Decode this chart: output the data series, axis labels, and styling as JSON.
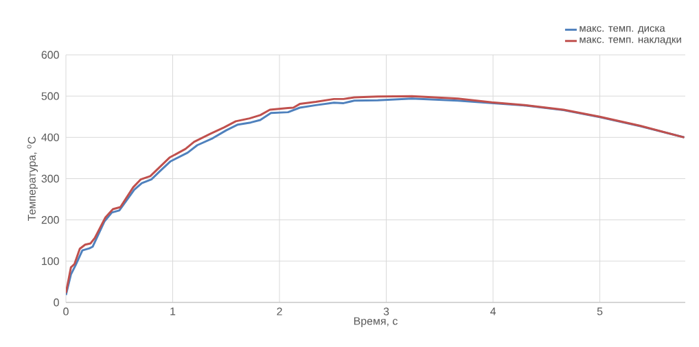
{
  "chart_data": {
    "type": "line",
    "xlabel": "Время, с",
    "ylabel": "Температура, $^{o}$C",
    "xlim": [
      0,
      5.8
    ],
    "ylim": [
      0,
      600
    ],
    "xticks": [
      0,
      1,
      2,
      3,
      4,
      5
    ],
    "yticks": [
      0,
      100,
      200,
      300,
      400,
      500,
      600
    ],
    "grid": true,
    "legend": "top right",
    "marker": "none",
    "line_style": "solid",
    "series": [
      {
        "name": "макс. темп. диска",
        "color": "#4f81bd",
        "x": [
          0,
          0.047,
          0.09,
          0.154,
          0.22,
          0.25,
          0.36,
          0.43,
          0.5,
          0.64,
          0.71,
          0.8,
          0.88,
          0.98,
          1.14,
          1.23,
          1.375,
          1.5,
          1.61,
          1.73,
          1.82,
          1.92,
          2.08,
          2.19,
          2.34,
          2.51,
          2.6,
          2.7,
          2.92,
          3.24,
          3.67,
          3.99,
          4.31,
          4.66,
          5.0,
          5.38,
          5.79
        ],
        "values": [
          18,
          68,
          90,
          126,
          131,
          135,
          196,
          218,
          223,
          273,
          289,
          298,
          318,
          342,
          363,
          381,
          398,
          417,
          431,
          436,
          442,
          459,
          461,
          472,
          478,
          484,
          483,
          489,
          490,
          494,
          489,
          483,
          477,
          466,
          449,
          427,
          400
        ]
      },
      {
        "name": "макс. темп. накладки",
        "color": "#c0504d",
        "x": [
          0,
          0.047,
          0.08,
          0.13,
          0.18,
          0.23,
          0.27,
          0.37,
          0.44,
          0.51,
          0.63,
          0.7,
          0.79,
          0.87,
          0.97,
          1.12,
          1.2,
          1.355,
          1.48,
          1.59,
          1.72,
          1.82,
          1.91,
          2.08,
          2.13,
          2.19,
          2.34,
          2.51,
          2.6,
          2.7,
          2.92,
          3.24,
          3.67,
          3.99,
          4.31,
          4.66,
          5.0,
          5.38,
          5.79
        ],
        "values": [
          23,
          85,
          93,
          130,
          140,
          143,
          156,
          206,
          226,
          231,
          279,
          298,
          306,
          326,
          351,
          372,
          389,
          409,
          424,
          439,
          446,
          454,
          467,
          471,
          472,
          481,
          486,
          493,
          493,
          497,
          499,
          500,
          494,
          485,
          478,
          467,
          450,
          428,
          400
        ]
      }
    ]
  }
}
